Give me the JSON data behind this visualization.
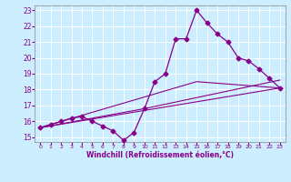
{
  "xlabel": "Windchill (Refroidissement éolien,°C)",
  "xlim": [
    -0.5,
    23.5
  ],
  "ylim": [
    14.7,
    23.3
  ],
  "yticks": [
    15,
    16,
    17,
    18,
    19,
    20,
    21,
    22,
    23
  ],
  "xticks": [
    0,
    1,
    2,
    3,
    4,
    5,
    6,
    7,
    8,
    9,
    10,
    11,
    12,
    13,
    14,
    15,
    16,
    17,
    18,
    19,
    20,
    21,
    22,
    23
  ],
  "bg_color": "#cceeff",
  "grid_color": "#ffffff",
  "line_color": "#880088",
  "line1_x": [
    0,
    1,
    2,
    3,
    4,
    5,
    6,
    7,
    8,
    9,
    10,
    11,
    12,
    13,
    14,
    15,
    16,
    17,
    18,
    19,
    20,
    21,
    22,
    23
  ],
  "line1_y": [
    15.6,
    15.8,
    16.0,
    16.2,
    16.3,
    16.0,
    15.7,
    15.4,
    14.8,
    15.3,
    16.8,
    18.5,
    19.0,
    21.2,
    21.2,
    23.0,
    22.2,
    21.5,
    21.0,
    20.0,
    19.8,
    19.3,
    18.7,
    18.1
  ],
  "line2_x": [
    0,
    23
  ],
  "line2_y": [
    15.6,
    18.1
  ],
  "line3_x": [
    0,
    10,
    23
  ],
  "line3_y": [
    15.6,
    16.8,
    18.6
  ],
  "line4_x": [
    0,
    15,
    23
  ],
  "line4_y": [
    15.6,
    18.5,
    18.1
  ]
}
